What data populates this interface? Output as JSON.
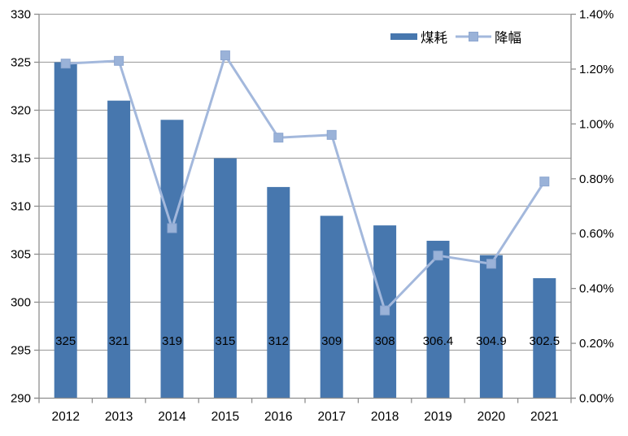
{
  "chart_data": {
    "type": "bar",
    "subtype": "bar+line-dual-axis",
    "title": "",
    "categories": [
      "2012",
      "2013",
      "2014",
      "2015",
      "2016",
      "2017",
      "2018",
      "2019",
      "2020",
      "2021"
    ],
    "series": [
      {
        "name": "煤耗",
        "type": "bar",
        "axis": "left",
        "color": "#4777AE",
        "values": [
          325,
          321,
          319,
          315,
          312,
          309,
          308,
          306.4,
          304.9,
          302.5
        ],
        "data_labels": [
          "325",
          "321",
          "319",
          "315",
          "312",
          "309",
          "308",
          "306.4",
          "304.9",
          "302.5"
        ]
      },
      {
        "name": "降幅",
        "type": "line",
        "axis": "right",
        "color": "#A3B8DC",
        "marker_color": "#9AB2D8",
        "marker": "square",
        "values_pct": [
          1.22,
          1.23,
          0.62,
          1.25,
          0.95,
          0.96,
          0.32,
          0.52,
          0.49,
          0.79
        ]
      }
    ],
    "left_axis": {
      "min": 290,
      "max": 330,
      "step": 5,
      "tick_labels": [
        "330",
        "325",
        "320",
        "315",
        "310",
        "305",
        "300",
        "295",
        "290"
      ]
    },
    "right_axis": {
      "min": 0.0,
      "max": 1.4,
      "step": 0.2,
      "tick_labels": [
        "1.40%",
        "1.20%",
        "1.00%",
        "0.80%",
        "0.60%",
        "0.40%",
        "0.20%",
        "0.00%"
      ]
    },
    "legend": {
      "position": "top-inside",
      "items": [
        {
          "label": "煤耗",
          "swatch": "bar"
        },
        {
          "label": "降幅",
          "swatch": "line-marker"
        }
      ]
    },
    "grid": true,
    "colors": {
      "bar_fill": "#4777AE",
      "line_stroke": "#A3B8DC",
      "marker_fill": "#9AB2D8",
      "marker_edge": "#8CA6D0",
      "gridline": "#A6A6A6",
      "axis_line": "#8E8E8E",
      "text": "#000000",
      "background": "#FFFFFF"
    }
  }
}
